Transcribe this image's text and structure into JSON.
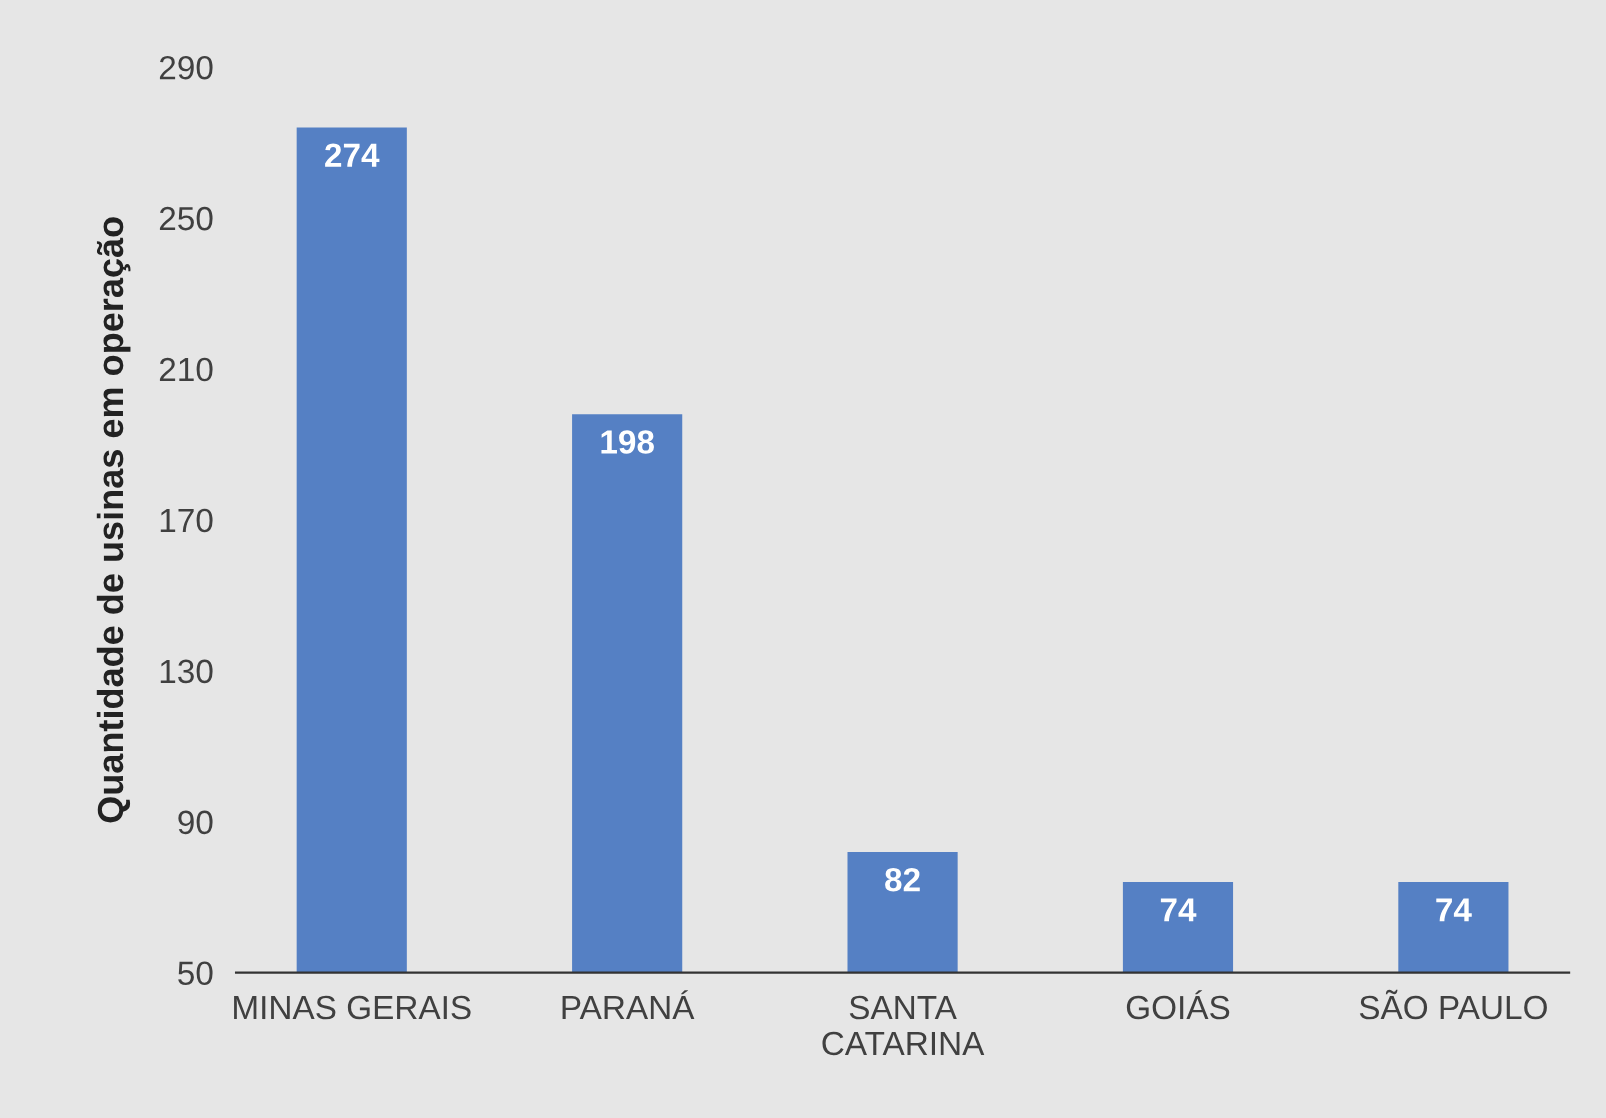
{
  "chart_data": {
    "type": "bar",
    "ylabel": "Quantidade de usinas em operação",
    "categories": [
      "MINAS GERAIS",
      "PARANÁ",
      "SANTA\nCATARINA",
      "GOIÁS",
      "SÃO PAULO"
    ],
    "values": [
      274,
      198,
      82,
      74,
      74
    ],
    "color": "#5580c4",
    "ylim": [
      50,
      290
    ],
    "yticks": [
      50,
      90,
      130,
      170,
      210,
      250,
      290
    ],
    "grid": false,
    "data_labels": true
  }
}
